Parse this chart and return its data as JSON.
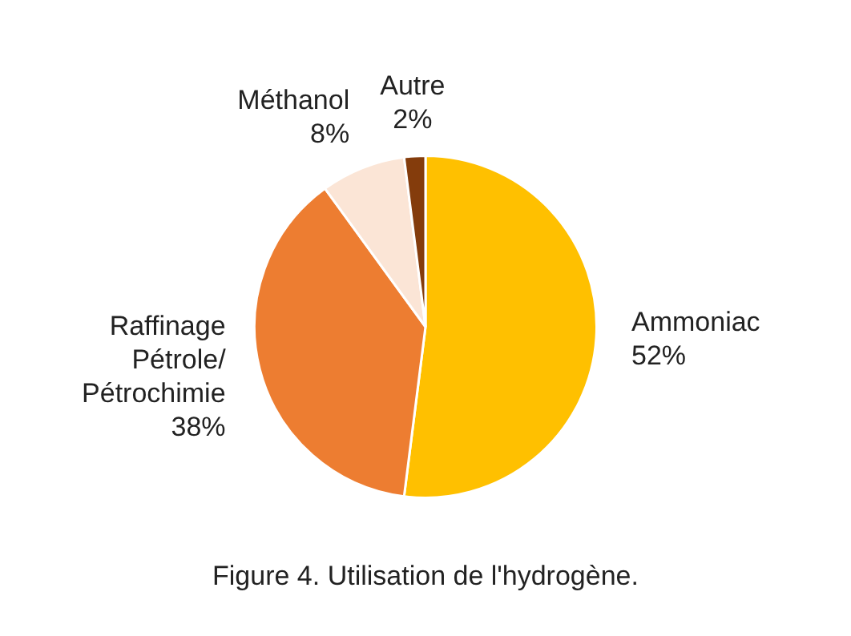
{
  "chart_data": {
    "type": "pie",
    "categories": [
      "Ammoniac",
      "Raffinage Pétrole/ Pétrochimie",
      "Méthanol",
      "Autre"
    ],
    "values": [
      52,
      38,
      8,
      2
    ],
    "value_labels": [
      "52%",
      "38%",
      "8%",
      "2%"
    ],
    "colors": [
      "#ffc000",
      "#ed7d31",
      "#fbe5d6",
      "#843c0c"
    ],
    "annotations": [
      "Figure 4. Utilisation de l'hydrogène."
    ]
  }
}
